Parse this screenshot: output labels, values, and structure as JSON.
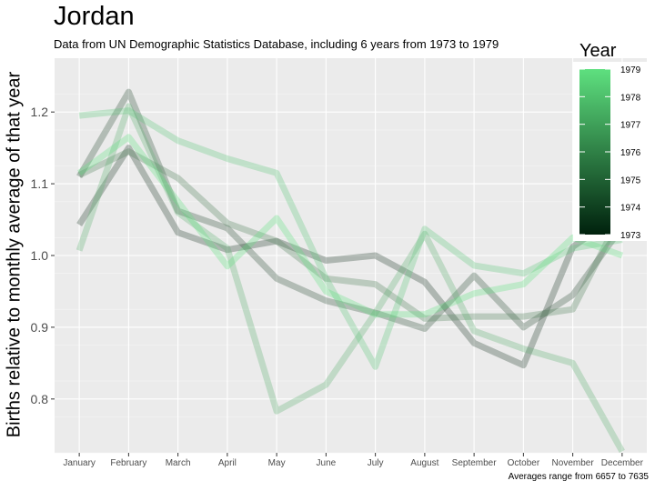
{
  "header": {
    "title": "Jordan",
    "subtitle": "Data from UN Demographic Statistics Database, including 6 years from 1973 to 1979",
    "caption": "Averages range from 6657 to 7635"
  },
  "chart_data": {
    "type": "line",
    "title": "Jordan",
    "subtitle": "Data from UN Demographic Statistics Database, including 6 years from 1973 to 1979",
    "xlabel": "",
    "ylabel": "Births relative to monthly average of that year",
    "categories": [
      "January",
      "February",
      "March",
      "April",
      "May",
      "June",
      "July",
      "August",
      "September",
      "October",
      "November",
      "December"
    ],
    "ylim": [
      0.725,
      1.275
    ],
    "yticks": [
      0.8,
      0.9,
      1.0,
      1.1,
      1.2
    ],
    "ytick_labels": [
      "0.8",
      "0.9",
      "1.0",
      "1.1",
      "1.2"
    ],
    "grid": true,
    "legend": {
      "title": "Year",
      "position": "top-right",
      "ticks": [
        "1979",
        "1978",
        "1977",
        "1976",
        "1975",
        "1974",
        "1973"
      ],
      "color_low": "#00210d",
      "color_high": "#5ee07f"
    },
    "series": [
      {
        "name": "1973",
        "color": "#203a2a",
        "values": [
          1.043,
          1.15,
          1.032,
          1.008,
          1.02,
          0.993,
          1.0,
          0.963,
          0.878,
          0.847,
          1.012,
          1.06
        ]
      },
      {
        "name": "1974",
        "color": "#2f4f38",
        "values": [
          1.11,
          1.228,
          1.062,
          1.038,
          0.968,
          0.937,
          0.92,
          0.898,
          0.972,
          0.9,
          0.945,
          1.04
        ]
      },
      {
        "name": "1975",
        "color": "#4c7e57",
        "values": [
          1.112,
          1.145,
          1.108,
          1.045,
          1.02,
          0.968,
          0.96,
          0.912,
          0.915,
          0.915,
          0.925,
          1.06
        ]
      },
      {
        "name": "1977",
        "color": "#5cb072",
        "values": [
          1.007,
          1.208,
          1.06,
          1.01,
          0.783,
          0.82,
          0.92,
          1.03,
          0.895,
          0.87,
          0.85,
          0.727
        ]
      },
      {
        "name": "1978",
        "color": "#5cc87a",
        "values": [
          1.195,
          1.202,
          1.16,
          1.135,
          1.115,
          0.968,
          0.845,
          1.037,
          0.986,
          0.975,
          1.01,
          1.022
        ]
      },
      {
        "name": "1979",
        "color": "#5ee07f",
        "values": [
          1.115,
          1.165,
          1.075,
          0.985,
          1.052,
          0.95,
          0.918,
          0.918,
          0.947,
          0.96,
          1.025,
          1.0
        ]
      }
    ]
  }
}
